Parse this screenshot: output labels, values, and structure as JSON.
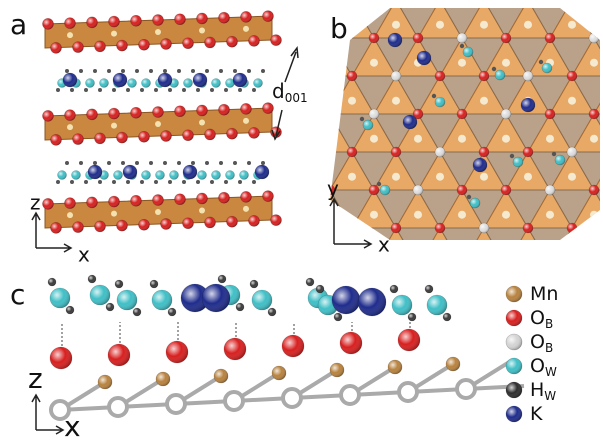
{
  "panel_a": {
    "label": "a",
    "interlayer": {
      "symbol": "d",
      "subscript": "001"
    },
    "axes": {
      "vertical": "z",
      "horizontal": "x"
    }
  },
  "panel_b": {
    "label": "b",
    "axes": {
      "vertical": "y",
      "horizontal": "x"
    }
  },
  "panel_c": {
    "label": "c",
    "axes": {
      "vertical": "z",
      "horizontal": "x"
    }
  },
  "legend": [
    {
      "symbol": "Mn",
      "color": "#b8823e"
    },
    {
      "symbol": "O",
      "subscript": "B",
      "color": "#d81f1f"
    },
    {
      "symbol": "O",
      "subscript": "B",
      "color": "#d4d4d4"
    },
    {
      "symbol": "O",
      "subscript": "W",
      "color": "#3fbfc6"
    },
    {
      "symbol": "H",
      "subscript": "W",
      "color": "#2e2e2e"
    },
    {
      "symbol": "K",
      "color": "#1f2c8c"
    }
  ]
}
